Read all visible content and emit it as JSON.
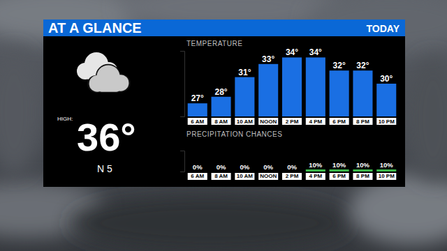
{
  "header": {
    "title": "AT A GLANCE",
    "period": "TODAY"
  },
  "summary": {
    "high_label": "HIGH:",
    "high": "36°",
    "wind": "N 5"
  },
  "chart_data": [
    {
      "type": "bar",
      "title": "TEMPERATURE",
      "categories": [
        "6 AM",
        "8 AM",
        "10 AM",
        "NOON",
        "2 PM",
        "4 PM",
        "6 PM",
        "8 PM",
        "10 PM"
      ],
      "values": [
        27,
        28,
        31,
        33,
        34,
        34,
        32,
        32,
        30
      ],
      "value_labels": [
        "27°",
        "28°",
        "31°",
        "33°",
        "34°",
        "34°",
        "32°",
        "32°",
        "30°"
      ],
      "color": "#1a6fe3",
      "ylim": [
        25,
        35
      ],
      "yticks": [],
      "grid": false,
      "data_labels": true,
      "tick_labels": "x"
    },
    {
      "type": "bar",
      "title": "PRECIPITATION CHANCES",
      "categories": [
        "6 AM",
        "8 AM",
        "10 AM",
        "NOON",
        "2 PM",
        "4 PM",
        "6 PM",
        "8 PM",
        "10 PM"
      ],
      "values": [
        0,
        0,
        0,
        0,
        0,
        10,
        10,
        10,
        10
      ],
      "value_labels": [
        "0%",
        "0%",
        "0%",
        "0%",
        "0%",
        "10%",
        "10%",
        "10%",
        "10%"
      ],
      "color": "#3cb94a",
      "ylim": [
        0,
        100
      ],
      "yticks": [],
      "grid": false,
      "data_labels": true,
      "tick_labels": "x"
    }
  ]
}
